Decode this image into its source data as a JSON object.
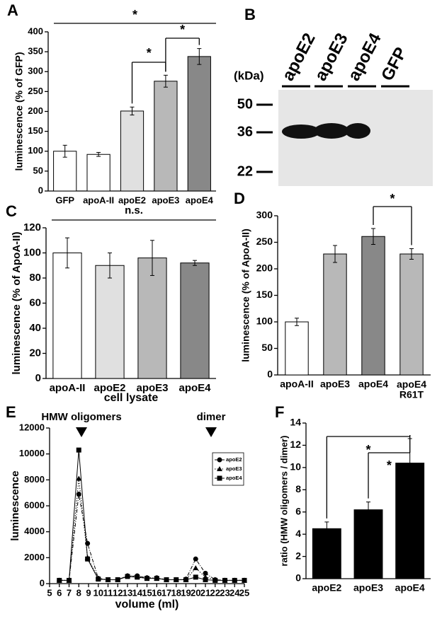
{
  "chart_data": [
    {
      "type": "bar",
      "label": "A",
      "y_label": "luminescence (% of GFP)",
      "categories": [
        "GFP",
        "apoA-II",
        "apoE2",
        "apoE3",
        "apoE4"
      ],
      "values": [
        100,
        92,
        201,
        276,
        338
      ],
      "errors": [
        15,
        5,
        10,
        15,
        20
      ],
      "colors": [
        "#ffffff",
        "#ffffff",
        "#e0e0e0",
        "#b8b8b8",
        "#888888"
      ],
      "ylim": [
        0,
        400
      ],
      "yticks": [
        0,
        50,
        100,
        150,
        200,
        250,
        300,
        350,
        400
      ],
      "annotations": [
        "*",
        "*",
        "*"
      ]
    },
    {
      "type": "bar",
      "label": "C",
      "y_label": "luminescence (% of ApoA-II)",
      "x_label": "cell lysate",
      "categories": [
        "apoA-II",
        "apoE2",
        "apoE3",
        "apoE4"
      ],
      "values": [
        100,
        90,
        96,
        92
      ],
      "errors": [
        12,
        10,
        14,
        2
      ],
      "colors": [
        "#ffffff",
        "#e0e0e0",
        "#b8b8b8",
        "#888888"
      ],
      "ylim": [
        0,
        120
      ],
      "yticks": [
        0,
        20,
        40,
        60,
        80,
        100,
        120
      ],
      "annotations": [
        "n.s."
      ]
    },
    {
      "type": "bar",
      "label": "D",
      "y_label": "luminescence (% of ApoA-II)",
      "categories": [
        "apoA-II",
        "apoE3",
        "apoE4",
        "apoE4 R61T"
      ],
      "values": [
        100,
        228,
        261,
        228
      ],
      "errors": [
        7,
        16,
        15,
        10
      ],
      "colors": [
        "#ffffff",
        "#b8b8b8",
        "#888888",
        "#b8b8b8"
      ],
      "ylim": [
        0,
        300
      ],
      "yticks": [
        0,
        50,
        100,
        150,
        200,
        250,
        300
      ],
      "annotations": [
        "*"
      ]
    },
    {
      "type": "line",
      "label": "E",
      "y_label": "luminescence",
      "x_label": "volume (ml)",
      "x": [
        6,
        7,
        8,
        8.9,
        10,
        11,
        12,
        13,
        14,
        15,
        16,
        17,
        18,
        19,
        20,
        21,
        22,
        23,
        24,
        25
      ],
      "series": [
        {
          "name": "apoE2",
          "color": "#000000",
          "marker": "circle",
          "linestyle": "dashdot",
          "values": [
            250,
            250,
            6900,
            3100,
            400,
            300,
            300,
            600,
            600,
            450,
            450,
            300,
            300,
            350,
            1900,
            800,
            300,
            250,
            250,
            250
          ]
        },
        {
          "name": "apoE3",
          "color": "#000000",
          "marker": "triangle",
          "linestyle": "dotted",
          "values": [
            250,
            250,
            8100,
            2000,
            400,
            300,
            300,
            600,
            550,
            450,
            400,
            300,
            300,
            300,
            1200,
            500,
            300,
            250,
            250,
            250
          ]
        },
        {
          "name": "apoE4",
          "color": "#000000",
          "marker": "square",
          "linestyle": "solid",
          "values": [
            250,
            250,
            10300,
            1900,
            350,
            300,
            300,
            550,
            500,
            400,
            400,
            300,
            300,
            300,
            500,
            300,
            250,
            250,
            250,
            250
          ]
        }
      ],
      "xlim": [
        5,
        25
      ],
      "xticks": [
        5,
        6,
        7,
        8,
        9,
        10,
        11,
        12,
        13,
        14,
        15,
        16,
        17,
        18,
        19,
        20,
        21,
        22,
        23,
        24,
        25
      ],
      "ylim": [
        0,
        12000
      ],
      "yticks": [
        0,
        2000,
        4000,
        6000,
        8000,
        10000,
        12000
      ],
      "annotations": [
        "HMW oligomers",
        "dimer"
      ]
    },
    {
      "type": "bar",
      "label": "F",
      "y_label": "ratio (HMW oligomers / dimer)",
      "categories": [
        "apoE2",
        "apoE3",
        "apoE4"
      ],
      "values": [
        4.5,
        6.2,
        10.4
      ],
      "errors": [
        0.6,
        0.7,
        2.2
      ],
      "colors": [
        "#000000",
        "#000000",
        "#000000"
      ],
      "ylim": [
        0,
        14
      ],
      "yticks": [
        0,
        2,
        4,
        6,
        8,
        10,
        12,
        14
      ],
      "annotations": [
        "*",
        "*"
      ]
    }
  ],
  "blot": {
    "label": "B",
    "unit": "(kDa)",
    "lanes": [
      "apoE2",
      "apoE3",
      "apoE4",
      "GFP"
    ],
    "markers": [
      "50",
      "36",
      "22"
    ]
  }
}
